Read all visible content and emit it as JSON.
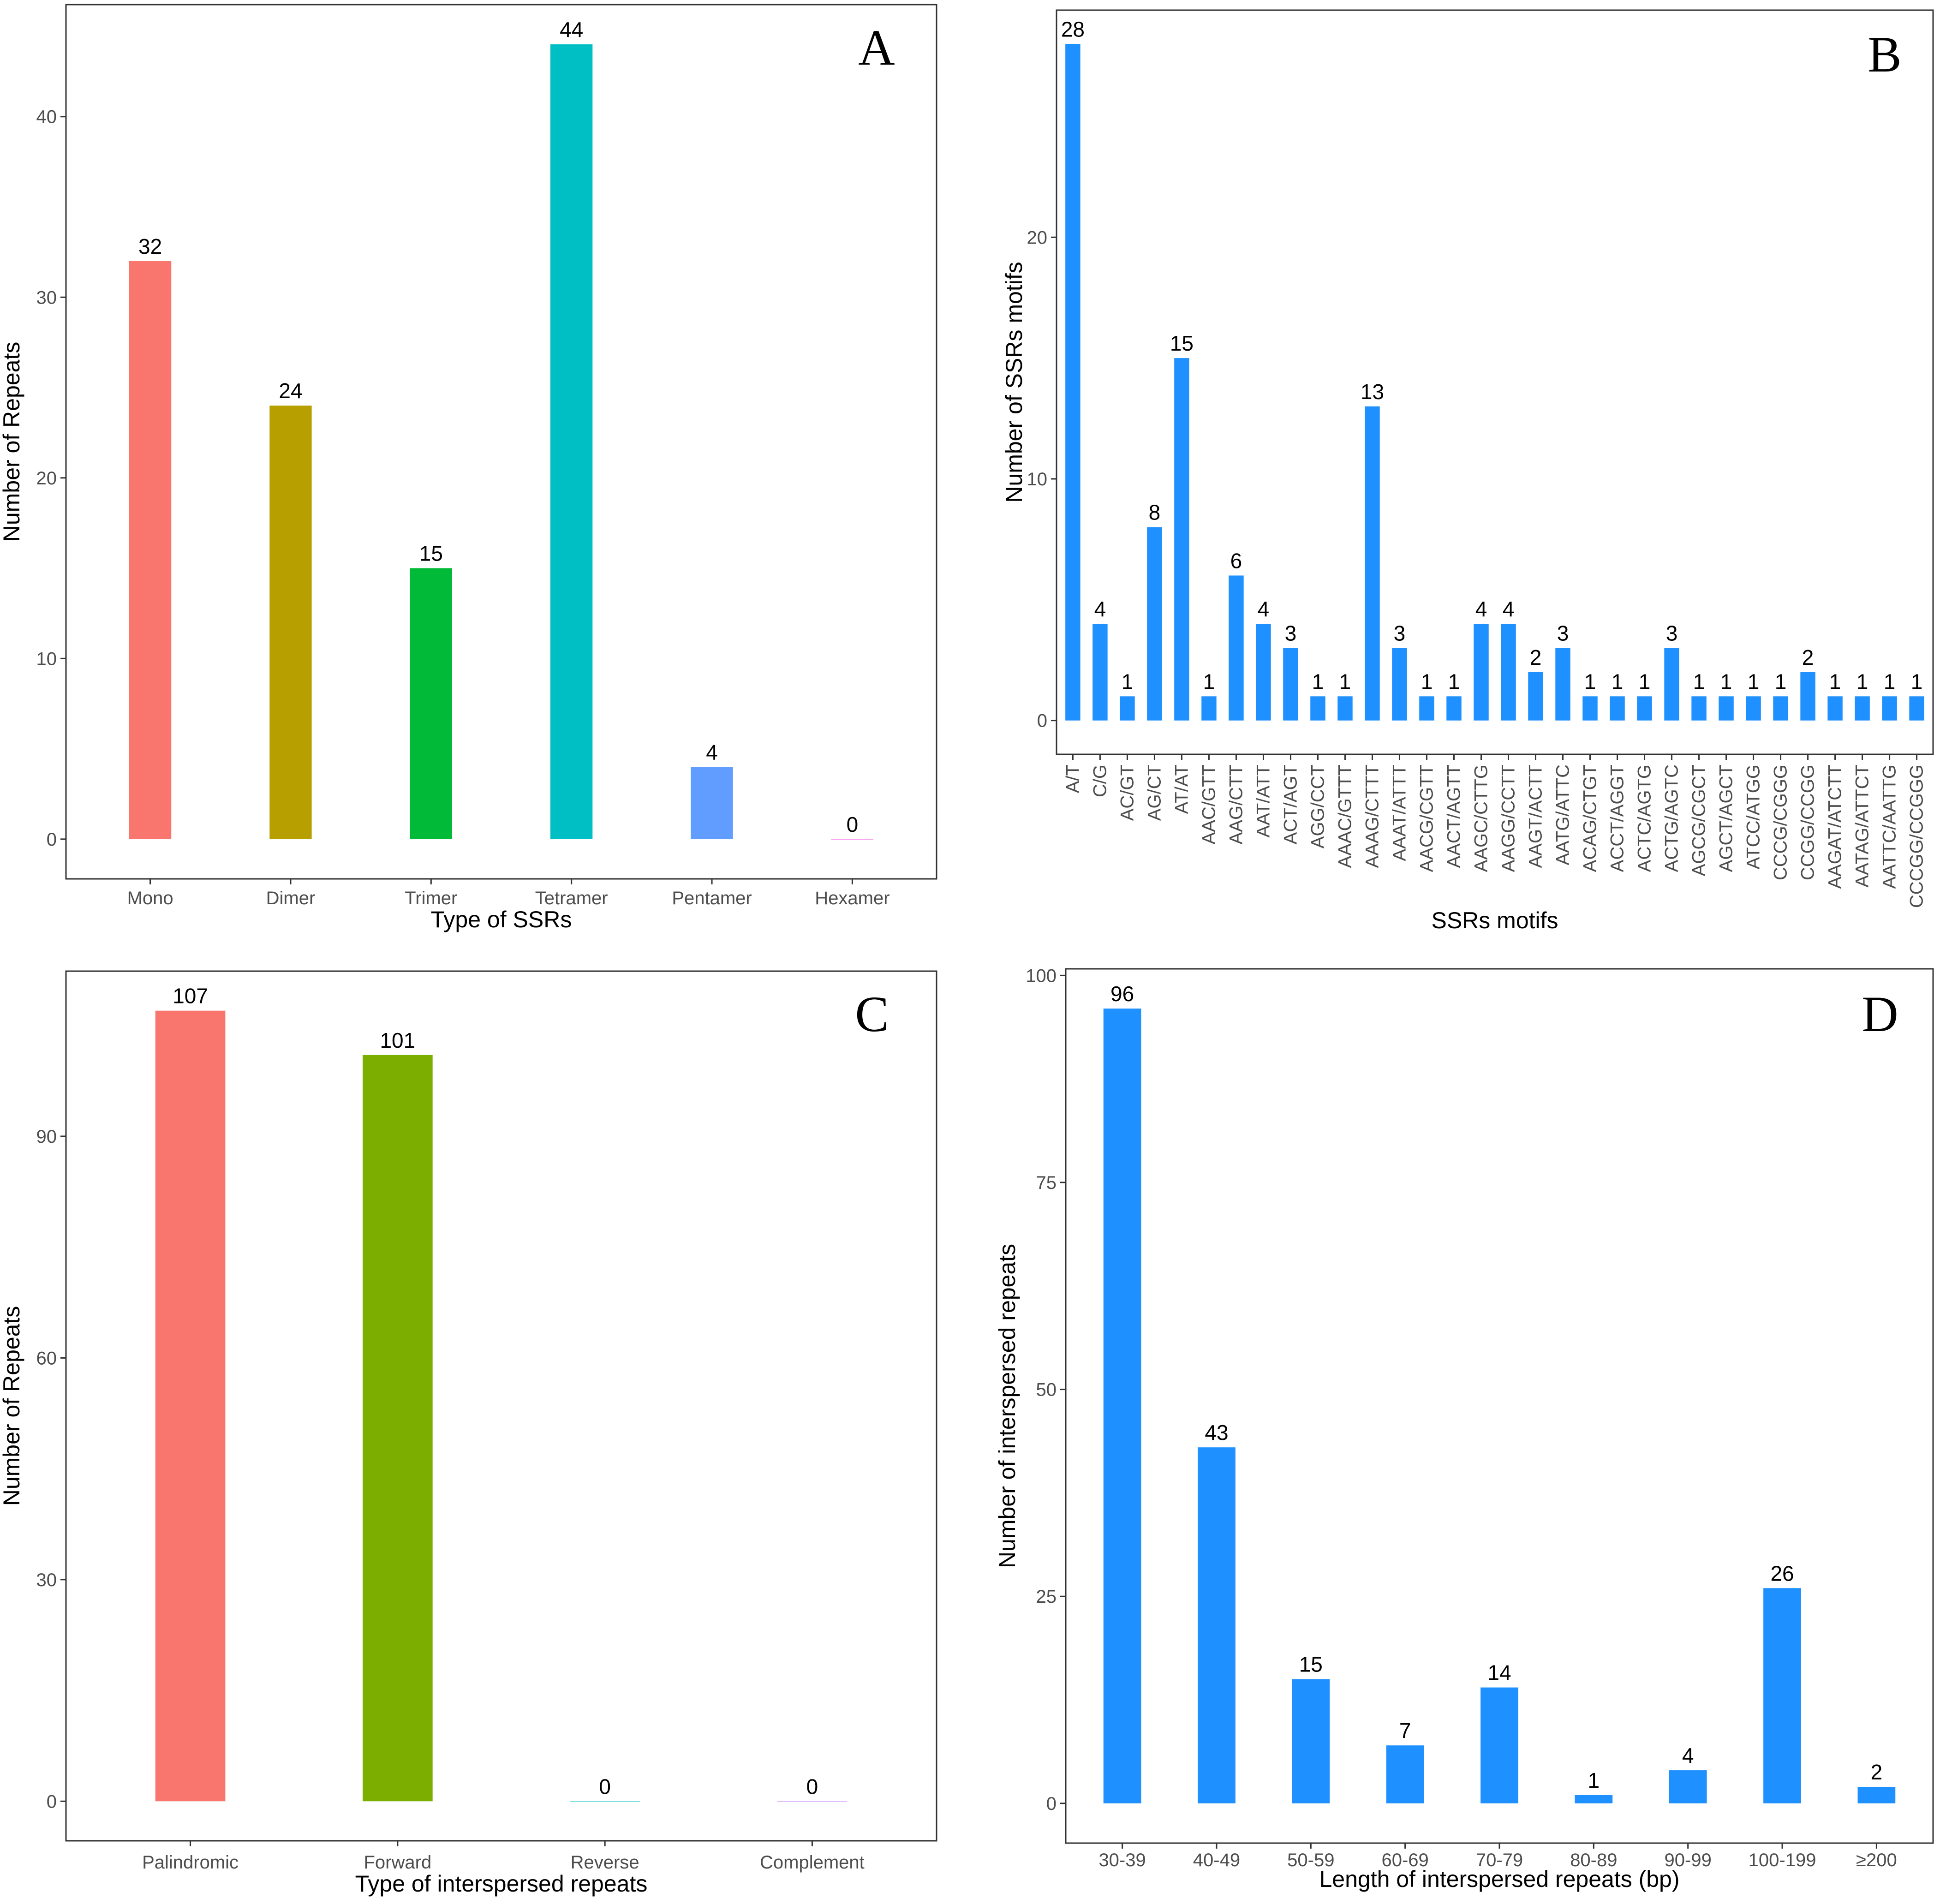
{
  "chart_data": [
    {
      "panel": "A",
      "type": "bar",
      "categories": [
        "Mono",
        "Dimer",
        "Trimer",
        "Tetramer",
        "Pentamer",
        "Hexamer"
      ],
      "values": [
        32,
        24,
        15,
        44,
        4,
        0
      ],
      "colors": [
        "#F8766D",
        "#B79F00",
        "#00BA38",
        "#00BFC4",
        "#619CFF",
        "#F564E3"
      ],
      "xlabel": "Type of SSRs",
      "ylabel": "Number of Repeats",
      "ylim": [
        -2.2,
        46.2
      ],
      "yticks": [
        0,
        10,
        20,
        30,
        40
      ],
      "labels_rotated": false
    },
    {
      "panel": "B",
      "type": "bar",
      "categories": [
        "A/T",
        "C/G",
        "AC/GT",
        "AG/CT",
        "AT/AT",
        "AAC/GTT",
        "AAG/CTT",
        "AAT/ATT",
        "ACT/AGT",
        "AGG/CCT",
        "AAAC/GTTT",
        "AAAG/CTTT",
        "AAAT/ATTT",
        "AACG/CGTT",
        "AACT/AGTT",
        "AAGC/CTTG",
        "AAGG/CCTT",
        "AAGT/ACTT",
        "AATG/ATTC",
        "ACAG/CTGT",
        "ACCT/AGGT",
        "ACTC/AGTG",
        "ACTG/AGTC",
        "AGCG/CGCT",
        "AGCT/AGCT",
        "ATCC/ATGG",
        "CCCG/CGGG",
        "CCGG/CCGG",
        "AAGAT/ATCTT",
        "AATAG/ATTCT",
        "AATTC/AATTG",
        "CCCGG/CCGGG"
      ],
      "values": [
        28,
        4,
        1,
        8,
        15,
        1,
        6,
        4,
        3,
        1,
        1,
        13,
        3,
        1,
        1,
        4,
        4,
        2,
        3,
        1,
        1,
        1,
        3,
        1,
        1,
        1,
        1,
        2,
        1,
        1,
        1,
        1
      ],
      "colors": [
        "#1E90FF"
      ],
      "xlabel": "SSRs motifs",
      "ylabel": "Number of SSRs motifs",
      "ylim": [
        -1.4,
        29.4
      ],
      "yticks": [
        0,
        10,
        20
      ],
      "labels_rotated": true
    },
    {
      "panel": "C",
      "type": "bar",
      "categories": [
        "Palindromic",
        "Forward",
        "Reverse",
        "Complement"
      ],
      "values": [
        107,
        101,
        0,
        0
      ],
      "colors": [
        "#F8766D",
        "#7CAE00",
        "#00BFC4",
        "#C77CFF"
      ],
      "xlabel": "Type of interspersed repeats",
      "ylabel": "Number of Repeats",
      "ylim": [
        -5.35,
        112.35
      ],
      "yticks": [
        0,
        30,
        60,
        90
      ],
      "labels_rotated": false
    },
    {
      "panel": "D",
      "type": "bar",
      "categories": [
        "30-39",
        "40-49",
        "50-59",
        "60-69",
        "70-79",
        "80-89",
        "90-99",
        "100-199",
        "≥200"
      ],
      "values": [
        96,
        43,
        15,
        7,
        14,
        1,
        4,
        26,
        2
      ],
      "colors": [
        "#1E90FF"
      ],
      "xlabel": "Length of interspersed repeats (bp)",
      "ylabel": "Number of interspersed repeats",
      "ylim": [
        -4.8,
        100.8
      ],
      "yticks": [
        0,
        25,
        50,
        75,
        100
      ],
      "labels_rotated": false
    }
  ]
}
